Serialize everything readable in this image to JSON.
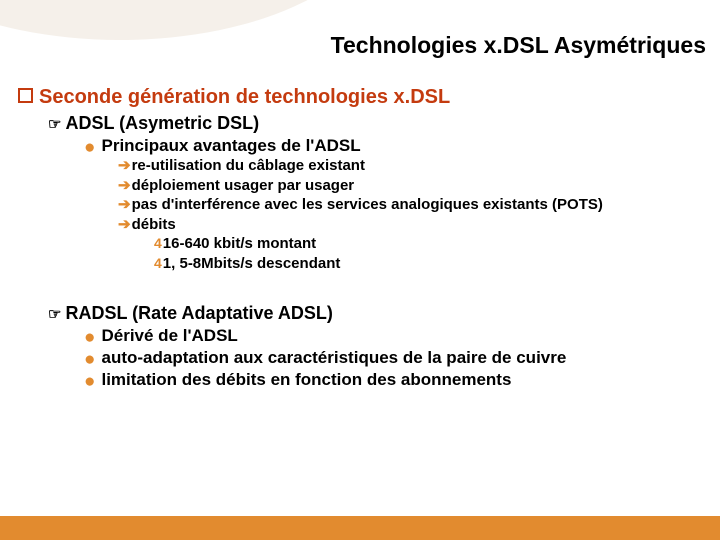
{
  "colors": {
    "accent_orange": "#e28b2f",
    "accent_red": "#c43b0f",
    "header_bg": "#f5f0ea",
    "text": "#000000",
    "background": "#ffffff"
  },
  "title": "Technologies x.DSL Asymétriques",
  "h1": "Seconde génération de technologies x.DSL",
  "adsl": {
    "heading": "ADSL (Asymetric DSL)",
    "sub": "Principaux avantages de l'ADSL",
    "pts": [
      "re-utilisation du câblage existant",
      "déploiement usager par usager",
      "pas d'interférence avec les services analogiques existants (POTS)",
      "débits"
    ],
    "debits": [
      "16-640 kbit/s montant",
      "1, 5-8Mbits/s descendant"
    ]
  },
  "radsl": {
    "heading": "RADSL (Rate Adaptative ADSL)",
    "pts": [
      "Dérivé de l'ADSL",
      "auto-adaptation aux caractéristiques de la paire de cuivre",
      "limitation des débits en fonction des abonnements"
    ]
  }
}
